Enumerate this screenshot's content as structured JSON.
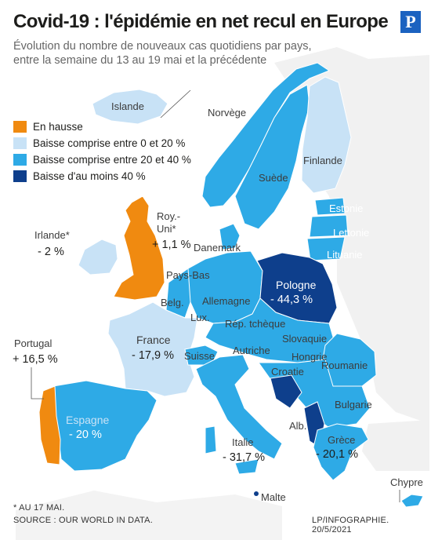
{
  "title": "Covid-19 : l'épidémie en net recul en Europe",
  "logo": "P",
  "subtitle": "Évolution du nombre de nouveaux cas quotidiens par pays, entre la semaine du 13 au 19 mai et la précédente",
  "legend": [
    {
      "label": "En hausse",
      "color": "#f08a10"
    },
    {
      "label": "Baisse comprise entre 0 et 20 %",
      "color": "#c8e2f6"
    },
    {
      "label": "Baisse comprise entre 20 et 40 %",
      "color": "#2eaae6"
    },
    {
      "label": "Baisse d'au moins 40 %",
      "color": "#0e3f8c"
    }
  ],
  "countries": {
    "islande": "Islande",
    "norvege": "Norvège",
    "finlande": "Finlande",
    "suede": "Suède",
    "estonie": "Estonie",
    "lettonie": "Lettonie",
    "lituanie": "Lituanie",
    "danemark": "Danemark",
    "roy_uni_line1": "Roy.-",
    "roy_uni_line2": "Uni*",
    "roy_uni_value": "+ 1,1 %",
    "irlande": "Irlande*",
    "irlande_value": "- 2 %",
    "pays_bas": "Pays-Bas",
    "belg": "Belg.",
    "lux": "Lux.",
    "allemagne": "Allemagne",
    "pologne": "Pologne",
    "pologne_value": "- 44,3 %",
    "rep_tcheque": "Rép. tchèque",
    "slovaquie": "Slovaquie",
    "autriche": "Autriche",
    "hongrie": "Hongrie",
    "roumanie": "Roumanie",
    "france": "France",
    "france_value": "- 17,9 %",
    "suisse": "Suisse",
    "croatie": "Croatie",
    "bulgarie": "Bulgarie",
    "portugal": "Portugal",
    "portugal_value": "+ 16,5 %",
    "espagne": "Espagne",
    "espagne_value": "- 20 %",
    "italie": "Italie",
    "italie_value": "- 31,7 %",
    "alb": "Alb.",
    "grece": "Grèce",
    "grece_value": "- 20,1 %",
    "chypre": "Chypre",
    "malte": "Malte"
  },
  "footer": {
    "note": "* AU 17 MAI.",
    "source": "SOURCE : OUR WORLD IN DATA.",
    "credit": "LP/INFOGRAPHIE. 20/5/2021"
  }
}
